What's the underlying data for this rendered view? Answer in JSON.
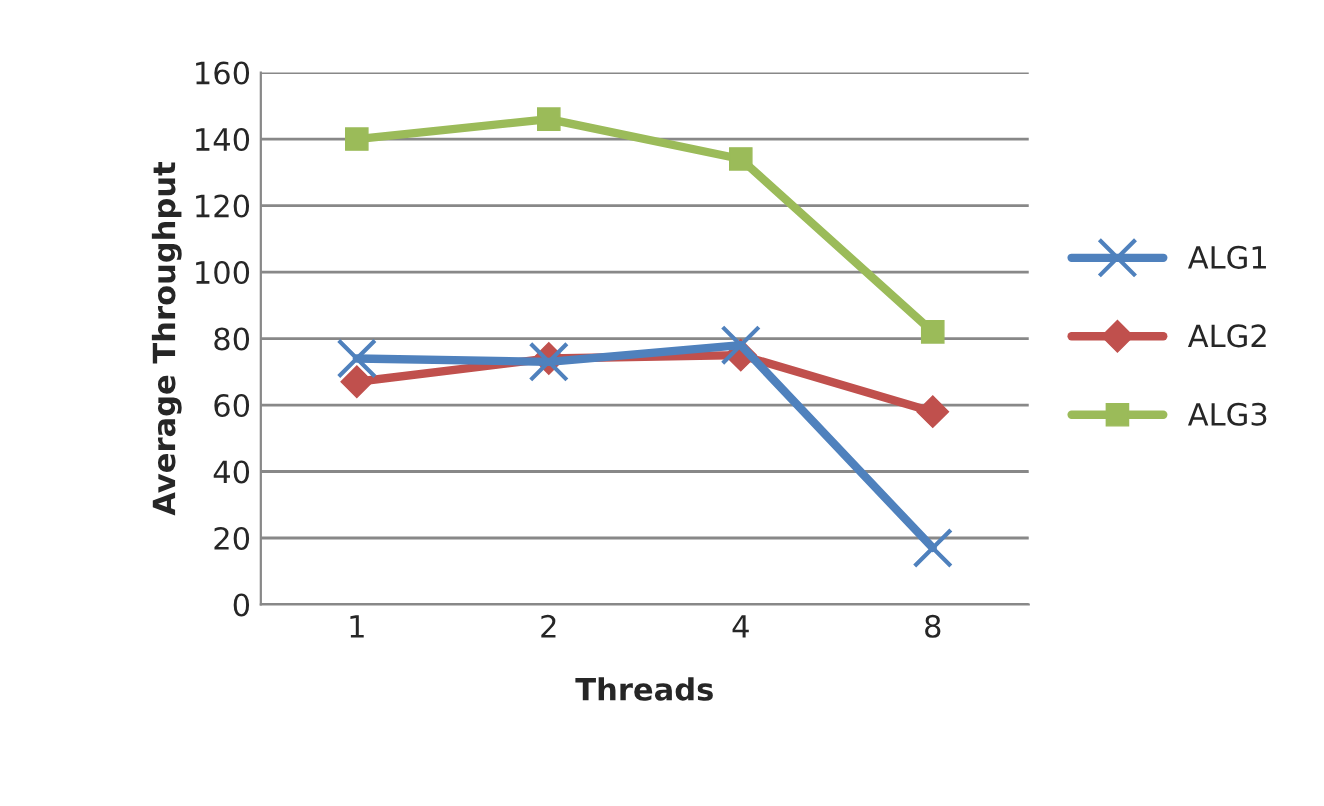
{
  "chart_data": {
    "type": "line",
    "xlabel": "Threads",
    "ylabel": "Average Throughput",
    "categories": [
      "1",
      "2",
      "4",
      "8"
    ],
    "series": [
      {
        "name": "ALG1",
        "color": "#4f81bd",
        "marker": "cross",
        "values": [
          74,
          73,
          78,
          17
        ]
      },
      {
        "name": "ALG2",
        "color": "#c0504d",
        "marker": "diamond",
        "values": [
          67,
          74,
          75,
          58
        ]
      },
      {
        "name": "ALG3",
        "color": "#9bbb59",
        "marker": "square",
        "values": [
          140,
          146,
          134,
          82
        ]
      }
    ],
    "ylim": [
      0,
      160
    ],
    "yticks": [
      0,
      20,
      40,
      60,
      80,
      100,
      120,
      140,
      160
    ],
    "grid": "y",
    "legend": "right"
  }
}
